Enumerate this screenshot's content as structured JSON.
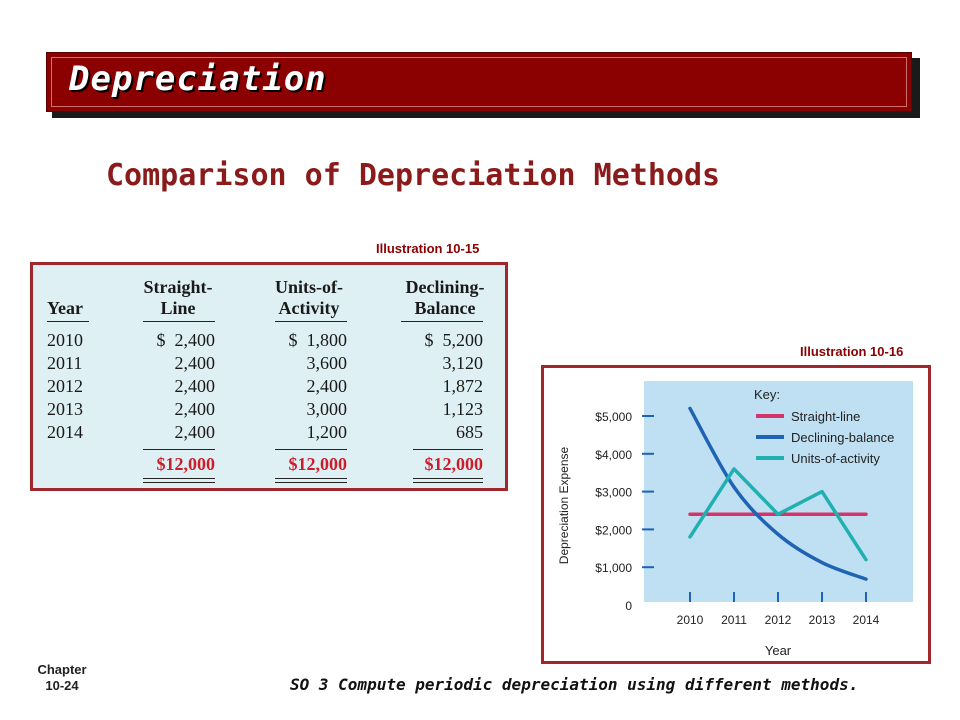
{
  "banner": {
    "title": "Depreciation"
  },
  "slide_title": "Comparison of Depreciation Methods",
  "illustration_table_label": "Illustration 10-15",
  "illustration_chart_label": "Illustration 10-16",
  "table": {
    "headers": [
      {
        "line1": "",
        "line2": "Year"
      },
      {
        "line1": "Straight-",
        "line2": "Line"
      },
      {
        "line1": "Units-of-",
        "line2": "Activity"
      },
      {
        "line1": "Declining-",
        "line2": "Balance"
      }
    ],
    "rows": [
      {
        "year": "2010",
        "straight": "$  2,400",
        "units": "$  1,800",
        "declining": "$  5,200"
      },
      {
        "year": "2011",
        "straight": "2,400",
        "units": "3,600",
        "declining": "3,120"
      },
      {
        "year": "2012",
        "straight": "2,400",
        "units": "2,400",
        "declining": "1,872"
      },
      {
        "year": "2013",
        "straight": "2,400",
        "units": "3,000",
        "declining": "1,123"
      },
      {
        "year": "2014",
        "straight": "2,400",
        "units": "1,200",
        "declining": "685"
      }
    ],
    "totals": {
      "straight": "$12,000",
      "units": "$12,000",
      "declining": "$12,000"
    }
  },
  "chart_data": {
    "type": "line",
    "x": [
      2010,
      2011,
      2012,
      2013,
      2014
    ],
    "xlabel": "Year",
    "ylabel": "Depreciation Expense",
    "ylim": [
      0,
      5000
    ],
    "y_ticks": [
      "0",
      "$1,000",
      "$2,000",
      "$3,000",
      "$4,000",
      "$5,000"
    ],
    "x_ticks": [
      "2010",
      "2011",
      "2012",
      "2013",
      "2014"
    ],
    "legend_title": "Key:",
    "legend_position": "top-right",
    "series": [
      {
        "name": "Straight-line",
        "values": [
          2400,
          2400,
          2400,
          2400,
          2400
        ],
        "color": "#d6336b"
      },
      {
        "name": "Declining-balance",
        "values": [
          5200,
          3120,
          1872,
          1123,
          685
        ],
        "color": "#1f63b5",
        "curved": true
      },
      {
        "name": "Units-of-activity",
        "values": [
          1800,
          3600,
          2400,
          3000,
          1200
        ],
        "color": "#20b0b0"
      }
    ],
    "plot_background": "#bfe0f2"
  },
  "footer": {
    "chapter_line1": "Chapter",
    "chapter_line2": "10-24",
    "so_text": "SO 3  Compute periodic depreciation using different methods."
  }
}
